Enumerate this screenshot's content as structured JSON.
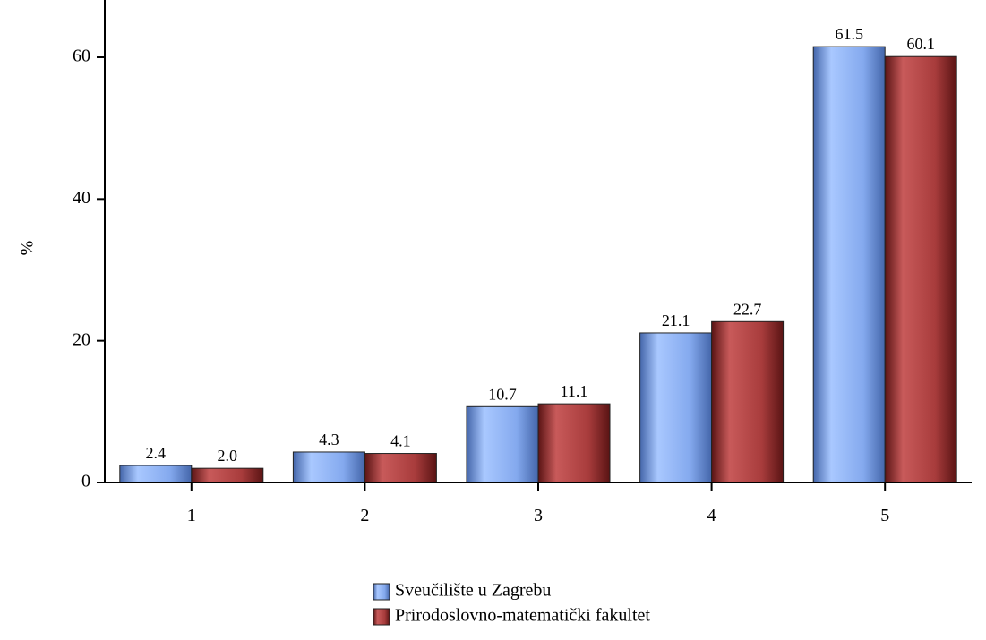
{
  "chart_data": {
    "type": "bar",
    "title": "",
    "xlabel": "",
    "ylabel": "%",
    "ylim": [
      0,
      66
    ],
    "yticks": [
      0,
      20,
      40,
      60
    ],
    "categories": [
      "1",
      "2",
      "3",
      "4",
      "5"
    ],
    "series": [
      {
        "name": "Sveučilište u Zagrebu",
        "values": [
          2.4,
          4.3,
          10.7,
          21.1,
          61.5
        ],
        "labels": [
          "2.4",
          "4.3",
          "10.7",
          "21.1",
          "61.5"
        ],
        "color_light": "#a9c8ff",
        "color_mid": "#84a9ee",
        "color_dark": "#4466aa"
      },
      {
        "name": "Prirodoslovno-matematički fakultet",
        "values": [
          2.0,
          4.1,
          11.1,
          22.7,
          60.1
        ],
        "labels": [
          "2.0",
          "4.1",
          "11.1",
          "22.7",
          "60.1"
        ],
        "color_light": "#c85a5a",
        "color_mid": "#a83c3c",
        "color_dark": "#5a1414"
      }
    ],
    "grid": false,
    "legend_position": "bottom-center"
  }
}
